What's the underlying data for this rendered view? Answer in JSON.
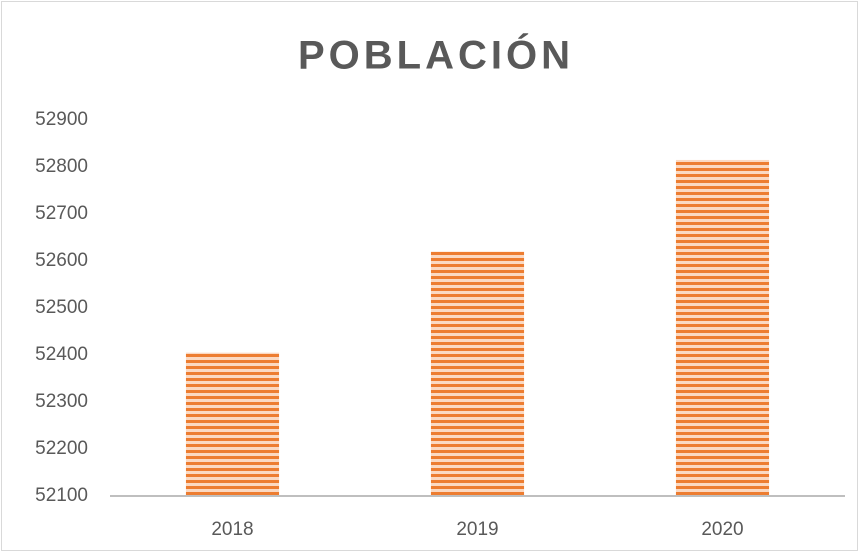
{
  "chart_data": {
    "type": "bar",
    "title": "POBLACIÓN",
    "categories": [
      "2018",
      "2019",
      "2020"
    ],
    "values": [
      52405,
      52620,
      52815
    ],
    "color": "#ed7d31",
    "ylim": [
      52100,
      52900
    ],
    "yticks": [
      52100,
      52200,
      52300,
      52400,
      52500,
      52600,
      52700,
      52800,
      52900
    ],
    "grid": false
  }
}
